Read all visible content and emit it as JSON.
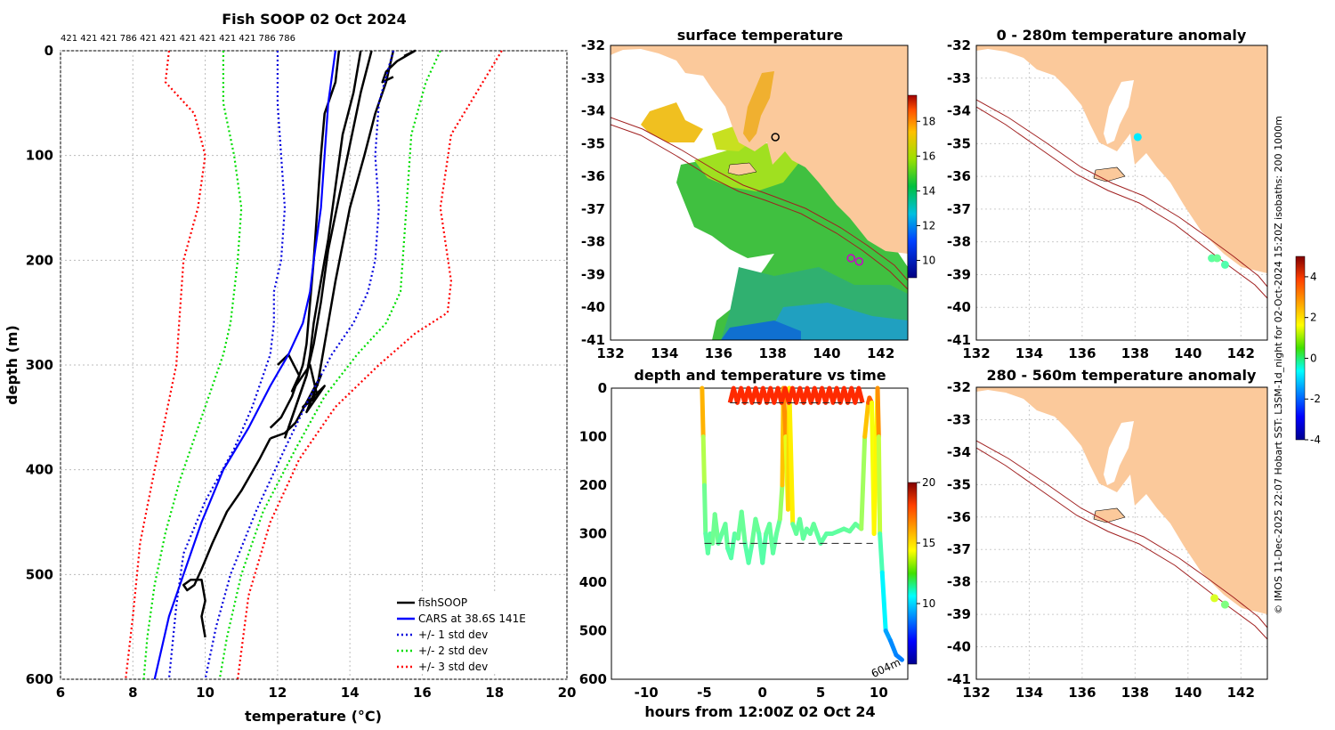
{
  "chart_data": [
    {
      "id": "profile",
      "type": "line",
      "title": "Fish SOOP 02 Oct 2024",
      "xlabel": "temperature (°C)",
      "ylabel": "depth (m)",
      "xlim": [
        6,
        20
      ],
      "ylim": [
        600,
        0
      ],
      "xticks": [
        6,
        8,
        10,
        12,
        14,
        16,
        18,
        20
      ],
      "yticks": [
        0,
        100,
        200,
        300,
        400,
        500,
        600
      ],
      "grid": true,
      "top_annotation": "421 421 421 786 421 421 421 421 421 421 786 786",
      "legend_position": "bottom-right",
      "series": [
        {
          "name": "fishSOOP",
          "color": "#000000",
          "style": "solid",
          "traces": [
            {
              "temp": [
                13.7,
                13.6,
                13.3,
                13.2,
                13.1,
                13.0,
                12.9,
                12.8,
                12.7,
                12.4,
                12.1,
                11.8
              ],
              "depth": [
                0,
                30,
                60,
                100,
                150,
                200,
                240,
                280,
                300,
                330,
                350,
                360
              ]
            },
            {
              "temp": [
                14.3,
                14.1,
                13.8,
                13.6,
                13.4,
                13.2,
                13.0,
                12.9,
                12.8,
                12.5,
                12.3
              ],
              "depth": [
                0,
                40,
                80,
                130,
                180,
                220,
                260,
                290,
                310,
                340,
                360
              ]
            },
            {
              "temp": [
                14.6,
                14.3,
                14.0,
                13.7,
                13.4,
                13.2,
                13.0,
                12.8,
                12.5,
                12.2
              ],
              "depth": [
                0,
                40,
                90,
                140,
                190,
                240,
                280,
                310,
                340,
                370
              ]
            },
            {
              "temp": [
                15.2,
                15.0,
                14.7,
                14.4,
                14.0,
                13.6,
                13.3,
                13.1
              ],
              "depth": [
                0,
                30,
                60,
                100,
                150,
                220,
                280,
                320
              ]
            },
            {
              "temp": [
                12.0,
                12.3,
                12.6,
                12.4,
                12.9,
                13.1,
                12.7,
                13.3,
                12.8,
                13.2,
                12.5,
                12.2,
                11.8
              ],
              "depth": [
                300,
                290,
                310,
                325,
                300,
                330,
                340,
                320,
                345,
                310,
                355,
                365,
                370
              ]
            },
            {
              "temp": [
                11.8,
                11.5,
                11.0,
                10.6,
                10.2,
                9.9,
                9.7,
                9.5,
                9.4,
                9.6,
                9.9,
                10.0,
                9.9,
                10.0
              ],
              "depth": [
                370,
                390,
                420,
                440,
                470,
                495,
                510,
                515,
                510,
                505,
                505,
                525,
                540,
                560
              ]
            },
            {
              "temp": [
                15.5,
                15.8,
                15.3,
                15.0,
                14.9,
                15.2
              ],
              "depth": [
                5,
                0,
                10,
                20,
                30,
                25
              ]
            }
          ]
        },
        {
          "name": "CARS at 38.6S 141E",
          "color": "#0000ff",
          "style": "solid",
          "temp": [
            13.6,
            13.4,
            13.3,
            13.2,
            13.0,
            12.9,
            12.7,
            12.3,
            11.8,
            11.2,
            10.5,
            9.9,
            9.4,
            9.0,
            8.8,
            8.6
          ],
          "depth": [
            0,
            50,
            100,
            150,
            200,
            230,
            260,
            290,
            320,
            360,
            400,
            450,
            500,
            540,
            570,
            600
          ]
        },
        {
          "name": "+/- 1 std dev",
          "color": "#0000dd",
          "style": "dotted",
          "left": {
            "temp": [
              12.0,
              12.0,
              12.1,
              12.2,
              12.1,
              11.9,
              11.9,
              11.8,
              11.6,
              11.3,
              10.8,
              10.0,
              9.4,
              9.2,
              9.0
            ],
            "depth": [
              0,
              50,
              100,
              150,
              200,
              230,
              260,
              290,
              310,
              340,
              380,
              430,
              480,
              530,
              600
            ]
          },
          "right": {
            "temp": [
              15.2,
              14.8,
              14.7,
              14.8,
              14.7,
              14.5,
              14.1,
              13.5,
              12.9,
              12.2,
              11.4,
              10.7,
              10.3,
              10.0
            ],
            "depth": [
              0,
              50,
              100,
              150,
              200,
              230,
              260,
              290,
              330,
              380,
              440,
              500,
              550,
              600
            ]
          }
        },
        {
          "name": "+/- 2 std dev",
          "color": "#00dd00",
          "style": "dotted",
          "left": {
            "temp": [
              10.5,
              10.5,
              10.8,
              11.0,
              10.9,
              10.8,
              10.7,
              10.5,
              10.2,
              9.8,
              9.3,
              8.9,
              8.6,
              8.4,
              8.3
            ],
            "depth": [
              0,
              50,
              100,
              150,
              200,
              230,
              260,
              290,
              320,
              360,
              410,
              460,
              510,
              560,
              600
            ]
          },
          "right": {
            "temp": [
              16.5,
              16.1,
              15.7,
              15.6,
              15.5,
              15.4,
              15.0,
              14.2,
              13.3,
              12.5,
              11.6,
              11.0,
              10.6,
              10.4
            ],
            "depth": [
              0,
              30,
              80,
              130,
              180,
              230,
              260,
              290,
              330,
              380,
              440,
              500,
              560,
              600
            ]
          }
        },
        {
          "name": "+/- 3 std dev",
          "color": "#ff0000",
          "style": "dotted",
          "left": {
            "temp": [
              9.0,
              8.9,
              9.7,
              10.0,
              9.8,
              9.4,
              9.3,
              9.2,
              8.9,
              8.6,
              8.2,
              8.0,
              7.8
            ],
            "depth": [
              0,
              30,
              60,
              100,
              150,
              200,
              250,
              300,
              350,
              400,
              470,
              540,
              600
            ]
          },
          "right": {
            "temp": [
              18.2,
              17.5,
              16.8,
              16.5,
              16.8,
              16.7,
              15.8,
              14.8,
              13.6,
              12.6,
              11.8,
              11.2,
              10.9
            ],
            "depth": [
              0,
              40,
              80,
              150,
              220,
              250,
              270,
              300,
              340,
              390,
              450,
              520,
              600
            ]
          }
        }
      ]
    },
    {
      "id": "sst_map",
      "type": "heatmap",
      "title": "surface temperature",
      "xlim": [
        132,
        143
      ],
      "ylim": [
        -41,
        -32
      ],
      "xticks": [
        132,
        134,
        136,
        138,
        140,
        142
      ],
      "yticks": [
        -32,
        -33,
        -34,
        -35,
        -36,
        -37,
        -38,
        -39,
        -40,
        -41
      ],
      "colorbar": {
        "min": 9,
        "max": 19.5,
        "ticks": [
          10,
          12,
          14,
          16,
          18
        ]
      },
      "markers": [
        {
          "lon": 138.1,
          "lat": -34.8,
          "color": "#000000"
        },
        {
          "lon": 140.9,
          "lat": -38.5,
          "color": "#cc00cc"
        },
        {
          "lon": 141.2,
          "lat": -38.6,
          "color": "#cc00cc"
        }
      ]
    },
    {
      "id": "depth_time",
      "type": "line",
      "title": "depth and temperature vs time",
      "xlabel": "hours from 12:00Z 02 Oct 24",
      "xlim": [
        -13,
        12.5
      ],
      "ylim": [
        600,
        0
      ],
      "xticks": [
        -10,
        -5,
        0,
        5,
        10
      ],
      "yticks": [
        0,
        100,
        200,
        300,
        400,
        500,
        600
      ],
      "colorbar": {
        "min": 5,
        "max": 20,
        "ticks": [
          10,
          15,
          20
        ]
      },
      "annotation": "604m",
      "reference_lines": [
        {
          "depth": 30,
          "from": -2.8,
          "to": 8.6
        },
        {
          "depth": 320,
          "from": -5.0,
          "to": 9.5
        }
      ],
      "track": {
        "hours": [
          -5.2,
          -5.1,
          -5.0,
          -4.9,
          -4.7,
          -4.5,
          -4.3,
          -4.1,
          -3.8,
          -3.5,
          -3.2,
          -3.0,
          -2.7,
          -2.4,
          -2.1,
          -1.8,
          -1.5,
          -1.2,
          -0.9,
          -0.6,
          -0.3,
          0.0,
          0.3,
          0.6,
          0.9,
          1.2,
          1.5,
          1.7,
          1.8,
          2.0,
          2.2,
          2.3,
          2.6,
          2.9,
          3.2,
          3.5,
          3.8,
          4.1,
          4.4,
          4.7,
          5.0,
          5.5,
          6.0,
          6.5,
          7.0,
          7.5,
          8.0,
          8.5,
          8.8,
          9.1,
          9.2,
          9.4,
          9.6,
          9.9,
          10.0,
          10.1,
          10.3,
          10.6,
          11.0,
          11.5,
          12.0
        ],
        "depth": [
          0,
          100,
          200,
          300,
          340,
          300,
          320,
          260,
          320,
          300,
          280,
          330,
          350,
          300,
          310,
          255,
          320,
          360,
          320,
          270,
          300,
          360,
          300,
          280,
          340,
          300,
          270,
          200,
          0,
          100,
          250,
          0,
          280,
          300,
          270,
          310,
          290,
          300,
          280,
          300,
          320,
          300,
          300,
          295,
          290,
          295,
          280,
          290,
          100,
          30,
          20,
          30,
          300,
          0,
          100,
          300,
          380,
          500,
          520,
          550,
          560
        ],
        "temp": [
          17,
          14,
          12.5,
          12,
          12,
          12,
          12,
          12.5,
          12,
          12,
          12.2,
          12,
          11.8,
          12,
          12,
          12.3,
          12,
          11.8,
          12,
          12.3,
          12,
          11.8,
          12,
          12.2,
          12,
          12,
          12.2,
          13.5,
          17,
          15,
          13,
          17,
          12.2,
          12,
          12.2,
          12,
          12.1,
          12,
          12.2,
          12,
          12,
          12,
          12,
          12,
          12.1,
          12,
          12.2,
          12,
          14,
          16.5,
          17,
          16.5,
          12,
          17,
          15,
          12,
          11.5,
          9.5,
          9,
          8.8,
          8.7
        ]
      },
      "surface_oscillation": {
        "from": -2.8,
        "to": 8.6,
        "n": 18,
        "depth_top": 0,
        "depth_bottom": 30,
        "temp": 17.5
      }
    },
    {
      "id": "anom_shallow",
      "type": "scatter",
      "title": "0 - 280m temperature anomaly",
      "xlim": [
        132,
        143
      ],
      "ylim": [
        -41,
        -32
      ],
      "xticks": [
        132,
        134,
        136,
        138,
        140,
        142
      ],
      "yticks": [
        -32,
        -33,
        -34,
        -35,
        -36,
        -37,
        -38,
        -39,
        -40,
        -41
      ],
      "colorbar": {
        "min": -4,
        "max": 5,
        "ticks": [
          -4,
          -2,
          0,
          2,
          4
        ]
      },
      "points": [
        {
          "lon": 138.1,
          "lat": -34.8,
          "anomaly": -0.8
        },
        {
          "lon": 140.9,
          "lat": -38.5,
          "anomaly": 0.2
        },
        {
          "lon": 141.1,
          "lat": -38.5,
          "anomaly": 0.3
        },
        {
          "lon": 141.4,
          "lat": -38.7,
          "anomaly": 0.1
        }
      ]
    },
    {
      "id": "anom_deep",
      "type": "scatter",
      "title": "280 - 560m temperature anomaly",
      "xlim": [
        132,
        143
      ],
      "ylim": [
        -41,
        -32
      ],
      "xticks": [
        132,
        134,
        136,
        138,
        140,
        142
      ],
      "yticks": [
        -32,
        -33,
        -34,
        -35,
        -36,
        -37,
        -38,
        -39,
        -40,
        -41
      ],
      "points": [
        {
          "lon": 141.0,
          "lat": -38.5,
          "anomaly": 1.3
        },
        {
          "lon": 141.4,
          "lat": -38.7,
          "anomaly": 0.5
        }
      ]
    }
  ],
  "side_text": "© IMOS 11-Dec-2025 22:07 Hobart SST: L3SM-1d_night for 02-Oct-2024 15:20Z isobaths: 200  1000m"
}
